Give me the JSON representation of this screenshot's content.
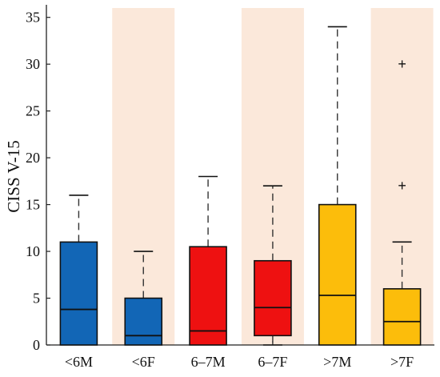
{
  "chart_data": {
    "type": "box",
    "ylabel": "CISS V-15",
    "xlabel": "",
    "title": "",
    "ylim": [
      0,
      36
    ],
    "yticks": [
      0,
      5,
      10,
      15,
      20,
      25,
      30,
      35
    ],
    "categories": [
      "<6M",
      "<6F",
      "6–7M",
      "6–7F",
      ">7M",
      ">7F"
    ],
    "shaded_categories": [
      "<6F",
      "6–7F",
      ">7F"
    ],
    "shade_color": "#fbe8da",
    "boxes": [
      {
        "category": "<6M",
        "color": "#1266b6",
        "whisker_low": 0,
        "q1": 0,
        "median": 3.8,
        "q3": 11,
        "whisker_high": 16,
        "outliers": []
      },
      {
        "category": "<6F",
        "color": "#1266b6",
        "whisker_low": 0,
        "q1": 0,
        "median": 1,
        "q3": 5,
        "whisker_high": 10,
        "outliers": []
      },
      {
        "category": "6–7M",
        "color": "#ee1111",
        "whisker_low": 0,
        "q1": 0,
        "median": 1.5,
        "q3": 10.5,
        "whisker_high": 18,
        "outliers": []
      },
      {
        "category": "6–7F",
        "color": "#ee1111",
        "whisker_low": 0,
        "q1": 1,
        "median": 4,
        "q3": 9,
        "whisker_high": 17,
        "outliers": []
      },
      {
        "category": ">7M",
        "color": "#fcbd0b",
        "whisker_low": 0,
        "q1": 0,
        "median": 5.3,
        "q3": 15,
        "whisker_high": 34,
        "outliers": []
      },
      {
        "category": ">7F",
        "color": "#fcbd0b",
        "whisker_low": 0,
        "q1": 0,
        "median": 2.5,
        "q3": 6,
        "whisker_high": 11,
        "outliers": [
          17,
          30
        ]
      }
    ]
  }
}
